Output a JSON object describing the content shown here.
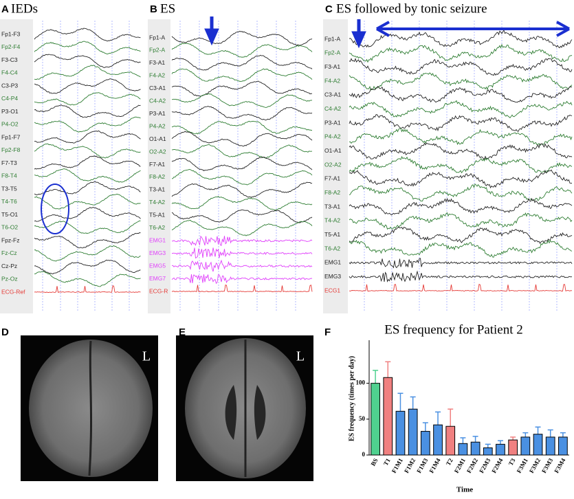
{
  "panels": [
    {
      "label": "A",
      "title": "IEDs",
      "channels": [
        {
          "name": "Fp1-F3",
          "color": "#222222"
        },
        {
          "name": "Fp2-F4",
          "color": "#2e7d32"
        },
        {
          "name": "F3-C3",
          "color": "#222222"
        },
        {
          "name": "F4-C4",
          "color": "#2e7d32"
        },
        {
          "name": "C3-P3",
          "color": "#222222"
        },
        {
          "name": "C4-P4",
          "color": "#2e7d32"
        },
        {
          "name": "P3-O1",
          "color": "#222222"
        },
        {
          "name": "P4-O2",
          "color": "#2e7d32"
        },
        {
          "name": "Fp1-F7",
          "color": "#222222"
        },
        {
          "name": "Fp2-F8",
          "color": "#2e7d32"
        },
        {
          "name": "F7-T3",
          "color": "#222222"
        },
        {
          "name": "F8-T4",
          "color": "#2e7d32"
        },
        {
          "name": "T3-T5",
          "color": "#222222"
        },
        {
          "name": "T4-T6",
          "color": "#2e7d32"
        },
        {
          "name": "T5-O1",
          "color": "#222222"
        },
        {
          "name": "T6-O2",
          "color": "#2e7d32"
        },
        {
          "name": "Fpz-Fz",
          "color": "#222222"
        },
        {
          "name": "Fz-Cz",
          "color": "#2e7d32"
        },
        {
          "name": "Cz-Pz",
          "color": "#222222"
        },
        {
          "name": "Pz-Oz",
          "color": "#2e7d32"
        },
        {
          "name": "ECG-Ref",
          "color": "#e53935"
        }
      ]
    },
    {
      "label": "B",
      "title": "ES",
      "channels": [
        {
          "name": "Fp1-A",
          "color": "#222222"
        },
        {
          "name": "Fp2-A",
          "color": "#2e7d32"
        },
        {
          "name": "F3-A1",
          "color": "#222222"
        },
        {
          "name": "F4-A2",
          "color": "#2e7d32"
        },
        {
          "name": "C3-A1",
          "color": "#222222"
        },
        {
          "name": "C4-A2",
          "color": "#2e7d32"
        },
        {
          "name": "P3-A1",
          "color": "#222222"
        },
        {
          "name": "P4-A2",
          "color": "#2e7d32"
        },
        {
          "name": "O1-A1",
          "color": "#222222"
        },
        {
          "name": "O2-A2",
          "color": "#2e7d32"
        },
        {
          "name": "F7-A1",
          "color": "#222222"
        },
        {
          "name": "F8-A2",
          "color": "#2e7d32"
        },
        {
          "name": "T3-A1",
          "color": "#222222"
        },
        {
          "name": "T4-A2",
          "color": "#2e7d32"
        },
        {
          "name": "T5-A1",
          "color": "#222222"
        },
        {
          "name": "T6-A2",
          "color": "#2e7d32"
        },
        {
          "name": "EMG1",
          "color": "#e040fb"
        },
        {
          "name": "EMG3",
          "color": "#e040fb"
        },
        {
          "name": "EMG5",
          "color": "#e040fb"
        },
        {
          "name": "EMG7",
          "color": "#e040fb"
        },
        {
          "name": "ECG-R",
          "color": "#e53935"
        }
      ]
    },
    {
      "label": "C",
      "title": "ES followed by tonic seizure",
      "channels": [
        {
          "name": "Fp1-A",
          "color": "#222222"
        },
        {
          "name": "Fp2-A",
          "color": "#2e7d32"
        },
        {
          "name": "F3-A1",
          "color": "#222222"
        },
        {
          "name": "F4-A2",
          "color": "#2e7d32"
        },
        {
          "name": "C3-A1",
          "color": "#222222"
        },
        {
          "name": "C4-A2",
          "color": "#2e7d32"
        },
        {
          "name": "P3-A1",
          "color": "#222222"
        },
        {
          "name": "P4-A2",
          "color": "#2e7d32"
        },
        {
          "name": "O1-A1",
          "color": "#222222"
        },
        {
          "name": "O2-A2",
          "color": "#2e7d32"
        },
        {
          "name": "F7-A1",
          "color": "#222222"
        },
        {
          "name": "F8-A2",
          "color": "#2e7d32"
        },
        {
          "name": "T3-A1",
          "color": "#222222"
        },
        {
          "name": "T4-A2",
          "color": "#2e7d32"
        },
        {
          "name": "T5-A1",
          "color": "#222222"
        },
        {
          "name": "T6-A2",
          "color": "#2e7d32"
        },
        {
          "name": "EMG1",
          "color": "#222222"
        },
        {
          "name": "EMG3",
          "color": "#222222"
        },
        {
          "name": "ECG1",
          "color": "#e53935"
        }
      ]
    },
    {
      "label": "D",
      "annotation": "L"
    },
    {
      "label": "E",
      "annotation": "L"
    }
  ],
  "chart_data": {
    "label": "F",
    "type": "bar",
    "title": "ES frequency for Patient 2",
    "x_label": "Time",
    "y_label": "ES frequency (times per day)",
    "categories": [
      "BS",
      "T1",
      "F1M1",
      "F1M2",
      "F1M3",
      "F1M4",
      "T2",
      "F2M1",
      "F2M2",
      "F2M3",
      "F2M4",
      "T3",
      "F3M1",
      "F3M2",
      "F3M3",
      "F3M4"
    ],
    "values": [
      100,
      108,
      61,
      64,
      33,
      42,
      40,
      16,
      18,
      10,
      15,
      21,
      25,
      29,
      25,
      25
    ],
    "errors": [
      18,
      22,
      25,
      17,
      12,
      18,
      24,
      8,
      8,
      5,
      5,
      4,
      6,
      10,
      10,
      6
    ],
    "colors": [
      "#4fd18f",
      "#f08080",
      "#4a90e2",
      "#4a90e2",
      "#4a90e2",
      "#4a90e2",
      "#f08080",
      "#4a90e2",
      "#4a90e2",
      "#4a90e2",
      "#4a90e2",
      "#f08080",
      "#4a90e2",
      "#4a90e2",
      "#4a90e2",
      "#4a90e2"
    ],
    "ylim": [
      0,
      160
    ],
    "yticks": [
      0,
      50,
      100
    ]
  }
}
